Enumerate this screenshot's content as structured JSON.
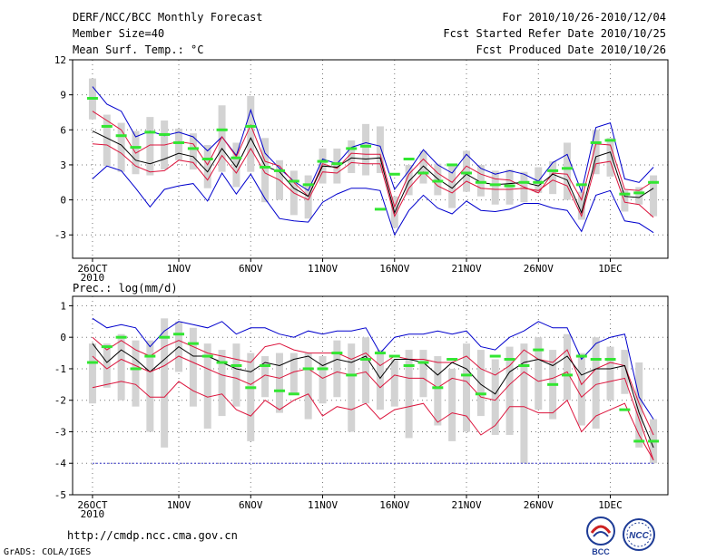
{
  "header": {
    "left_line1": "DERF/NCC/BCC Monthly Forecast",
    "left_line2": "Member Size=40",
    "left_line3": "Mean Surf. Temp.: °C",
    "right_line1": "For 2010/10/26-2010/12/04",
    "right_line2": "Fcst Started Refer Date 2010/10/25",
    "right_line3": "Fcst Produced Date 2010/10/26"
  },
  "footer": {
    "url": "http://cmdp.ncc.cma.gov.cn",
    "grads": "GrADS: COLA/IGES",
    "logo_bcc": "BCC",
    "logo_ncc": "NCC"
  },
  "colors": {
    "mean": "#000000",
    "spread": "#dc143c",
    "range": "#0000cd",
    "obs": "#32e632",
    "box": "#d3d3d3",
    "grid": "#777777",
    "floor": "#3a3acc"
  },
  "chart_data": [
    {
      "type": "line",
      "title": "Mean Surf. Temp.: °C",
      "ylim": [
        -5,
        12
      ],
      "yticks": [
        -3,
        0,
        3,
        6,
        9,
        12
      ],
      "xlim": [
        0,
        40
      ],
      "xticks": [
        {
          "x": 1,
          "label": "26OCT",
          "sub": "2010"
        },
        {
          "x": 7,
          "label": "1NOV"
        },
        {
          "x": 12,
          "label": "6NOV"
        },
        {
          "x": 17,
          "label": "11NOV"
        },
        {
          "x": 22,
          "label": "16NOV"
        },
        {
          "x": 27,
          "label": "21NOV"
        },
        {
          "x": 32,
          "label": "26NOV"
        },
        {
          "x": 37,
          "label": "1DEC"
        }
      ],
      "x": [
        1,
        2,
        3,
        4,
        5,
        6,
        7,
        8,
        9,
        10,
        11,
        12,
        13,
        14,
        15,
        16,
        17,
        18,
        19,
        20,
        21,
        22,
        23,
        24,
        25,
        26,
        27,
        28,
        29,
        30,
        31,
        32,
        33,
        34,
        35,
        36,
        37,
        38,
        39,
        40
      ],
      "series": [
        {
          "name": "max",
          "values": [
            9.7,
            8.2,
            7.6,
            5.4,
            5.9,
            5.5,
            5.8,
            5.4,
            4.2,
            5.4,
            3.8,
            7.7,
            4.0,
            2.7,
            1.6,
            0.8,
            3.5,
            3.1,
            4.5,
            4.9,
            4.6,
            0.9,
            2.5,
            4.3,
            3.0,
            2.3,
            3.9,
            2.7,
            2.2,
            2.5,
            2.2,
            1.6,
            3.2,
            3.9,
            0.7,
            6.2,
            6.6,
            1.8,
            1.5,
            2.8
          ]
        },
        {
          "name": "upper",
          "values": [
            7.6,
            6.8,
            6.0,
            4.0,
            4.7,
            4.7,
            5.0,
            4.8,
            3.0,
            5.4,
            3.7,
            6.4,
            3.3,
            2.9,
            1.5,
            0.3,
            3.1,
            2.7,
            4.0,
            3.9,
            3.9,
            -0.6,
            2.2,
            3.5,
            2.3,
            1.5,
            2.9,
            2.2,
            1.8,
            1.7,
            1.1,
            0.6,
            2.3,
            2.2,
            0.0,
            4.8,
            4.7,
            0.9,
            0.8,
            1.6
          ]
        },
        {
          "name": "mean",
          "values": [
            5.9,
            5.3,
            4.7,
            3.4,
            3.1,
            3.5,
            4.0,
            3.7,
            2.4,
            4.4,
            2.8,
            5.3,
            2.9,
            2.4,
            1.0,
            0.3,
            2.9,
            2.8,
            3.6,
            3.5,
            3.6,
            -1.1,
            1.6,
            2.9,
            1.8,
            1.0,
            2.2,
            1.5,
            1.3,
            1.4,
            1.5,
            1.2,
            2.2,
            1.7,
            -1.1,
            3.7,
            4.1,
            0.3,
            0.2,
            1.0
          ]
        },
        {
          "name": "lower",
          "values": [
            4.8,
            4.7,
            4.0,
            2.9,
            2.4,
            2.5,
            3.4,
            3.2,
            1.7,
            3.8,
            2.3,
            4.4,
            2.3,
            1.7,
            0.6,
            0.0,
            2.4,
            2.3,
            3.2,
            3.1,
            3.1,
            -1.4,
            1.0,
            2.4,
            1.2,
            0.6,
            1.6,
            1.0,
            0.9,
            0.9,
            1.0,
            0.8,
            1.7,
            1.2,
            -1.4,
            3.1,
            3.3,
            -0.2,
            -0.4,
            -1.5
          ]
        },
        {
          "name": "min",
          "values": [
            1.8,
            2.9,
            2.5,
            1.0,
            -0.6,
            0.9,
            1.2,
            1.4,
            -0.1,
            2.3,
            0.5,
            2.2,
            0.1,
            -1.6,
            -1.8,
            -1.9,
            -0.2,
            0.5,
            1.0,
            1.0,
            0.8,
            -3.0,
            -0.9,
            0.4,
            -0.7,
            -1.2,
            -0.1,
            -0.9,
            -1.0,
            -0.8,
            -0.3,
            -0.3,
            -0.7,
            -0.9,
            -2.7,
            0.4,
            0.8,
            -1.8,
            -2.0,
            -2.8
          ]
        },
        {
          "name": "obs",
          "values": [
            8.7,
            6.3,
            5.5,
            4.5,
            5.8,
            5.6,
            4.9,
            4.4,
            3.5,
            6.0,
            3.6,
            6.3,
            2.8,
            2.5,
            1.6,
            1.3,
            3.3,
            3.1,
            4.4,
            4.6,
            -0.8,
            2.2,
            3.5,
            2.3,
            1.6,
            3.0,
            2.3,
            1.5,
            1.3,
            1.2,
            1.5,
            1.5,
            2.5,
            2.7,
            1.3,
            4.9,
            5.1,
            0.5,
            0.6,
            1.5
          ]
        }
      ],
      "boxes": {
        "top": [
          10.4,
          7.3,
          6.6,
          5.9,
          7.1,
          6.8,
          6.1,
          5.7,
          4.7,
          8.1,
          4.9,
          8.9,
          5.3,
          3.4,
          2.5,
          2.1,
          4.4,
          4.4,
          5.1,
          6.5,
          6.3,
          0.3,
          3.0,
          4.2,
          3.1,
          2.9,
          4.2,
          3.0,
          2.5,
          2.6,
          2.4,
          2.8,
          3.3,
          4.9,
          0.7,
          6.0,
          5.3,
          0.8,
          1.1,
          2.1
        ],
        "bottom": [
          6.9,
          2.9,
          2.4,
          2.2,
          2.1,
          2.6,
          3.4,
          2.6,
          1.0,
          2.4,
          1.1,
          2.4,
          -0.2,
          0.0,
          -1.3,
          -1.6,
          1.4,
          1.4,
          2.3,
          2.1,
          2.3,
          -2.4,
          0.4,
          1.4,
          0.4,
          -0.7,
          0.7,
          0.3,
          -0.4,
          -0.4,
          -0.2,
          0.6,
          0.5,
          0.0,
          -1.7,
          2.2,
          2.0,
          -1.0,
          -0.4,
          -1.4
        ]
      }
    },
    {
      "type": "line",
      "title": "Prec.: log(mm/d)",
      "ylim": [
        -5,
        1.3
      ],
      "yticks": [
        -5,
        -4,
        -3,
        -2,
        -1,
        0,
        1
      ],
      "xlim": [
        0,
        40
      ],
      "xticks": [
        {
          "x": 1,
          "label": "26OCT",
          "sub": "2010"
        },
        {
          "x": 7,
          "label": "1NOV"
        },
        {
          "x": 12,
          "label": "6NOV"
        },
        {
          "x": 17,
          "label": "11NOV"
        },
        {
          "x": 22,
          "label": "16NOV"
        },
        {
          "x": 27,
          "label": "21NOV"
        },
        {
          "x": 32,
          "label": "26NOV"
        },
        {
          "x": 37,
          "label": "1DEC"
        }
      ],
      "x": [
        1,
        2,
        3,
        4,
        5,
        6,
        7,
        8,
        9,
        10,
        11,
        12,
        13,
        14,
        15,
        16,
        17,
        18,
        19,
        20,
        21,
        22,
        23,
        24,
        25,
        26,
        27,
        28,
        29,
        30,
        31,
        32,
        33,
        34,
        35,
        36,
        37,
        38,
        39,
        40
      ],
      "series": [
        {
          "name": "max",
          "values": [
            0.6,
            0.3,
            0.4,
            0.3,
            -0.3,
            0.2,
            0.5,
            0.4,
            0.3,
            0.5,
            0.1,
            0.3,
            0.3,
            0.1,
            0.0,
            0.2,
            0.1,
            0.2,
            0.2,
            0.3,
            -0.5,
            0.0,
            0.1,
            0.1,
            0.2,
            0.1,
            0.2,
            -0.3,
            -0.4,
            0.0,
            0.2,
            0.5,
            0.3,
            0.3,
            -0.7,
            -0.2,
            0.0,
            0.1,
            -1.9,
            -2.6
          ]
        },
        {
          "name": "upper",
          "values": [
            0.0,
            -0.4,
            -0.1,
            -0.4,
            -0.6,
            -0.3,
            -0.1,
            -0.3,
            -0.5,
            -0.6,
            -0.7,
            -0.8,
            -0.3,
            -0.2,
            -0.4,
            -0.5,
            -0.5,
            -0.5,
            -0.7,
            -0.5,
            -0.9,
            -0.6,
            -0.7,
            -0.7,
            -0.8,
            -0.8,
            -0.6,
            -1.0,
            -1.2,
            -0.9,
            -0.4,
            -0.7,
            -0.8,
            -0.4,
            -1.5,
            -1.0,
            -0.8,
            -0.9,
            -2.1,
            -3.1
          ]
        },
        {
          "name": "mean",
          "values": [
            -0.2,
            -0.8,
            -0.4,
            -0.7,
            -1.1,
            -0.7,
            -0.3,
            -0.6,
            -0.6,
            -0.8,
            -1.0,
            -1.1,
            -0.8,
            -0.9,
            -0.7,
            -0.6,
            -0.9,
            -0.7,
            -0.8,
            -0.6,
            -1.3,
            -0.7,
            -0.7,
            -0.8,
            -1.2,
            -0.8,
            -1.0,
            -1.5,
            -1.8,
            -1.1,
            -0.8,
            -0.7,
            -0.9,
            -0.6,
            -1.2,
            -1.0,
            -1.0,
            -0.9,
            -2.4,
            -3.5
          ]
        },
        {
          "name": "lower",
          "values": [
            -0.6,
            -1.0,
            -0.7,
            -0.9,
            -1.1,
            -0.9,
            -0.6,
            -0.8,
            -1.0,
            -1.2,
            -1.3,
            -1.5,
            -1.2,
            -1.3,
            -1.1,
            -1.0,
            -1.3,
            -1.1,
            -1.2,
            -1.1,
            -1.6,
            -1.2,
            -1.3,
            -1.3,
            -1.6,
            -1.3,
            -1.4,
            -1.9,
            -2.0,
            -1.5,
            -1.1,
            -1.4,
            -1.3,
            -1.1,
            -1.9,
            -1.5,
            -1.4,
            -1.3,
            -2.6,
            -3.9
          ]
        },
        {
          "name": "low2",
          "values": [
            -1.6,
            -1.5,
            -1.4,
            -1.5,
            -1.9,
            -1.9,
            -1.4,
            -1.7,
            -1.9,
            -1.8,
            -2.3,
            -2.5,
            -2.0,
            -2.3,
            -2.0,
            -1.8,
            -2.5,
            -2.2,
            -2.3,
            -2.1,
            -2.6,
            -2.3,
            -2.2,
            -2.1,
            -2.7,
            -2.4,
            -2.5,
            -3.1,
            -2.8,
            -2.2,
            -2.2,
            -2.4,
            -2.4,
            -2.0,
            -3.0,
            -2.5,
            -2.3,
            -2.1,
            -3.1,
            -3.9
          ]
        },
        {
          "name": "floor",
          "values": [
            -4,
            -4,
            -4,
            -4,
            -4,
            -4,
            -4,
            -4,
            -4,
            -4,
            -4,
            -4,
            -4,
            -4,
            -4,
            -4,
            -4,
            -4,
            -4,
            -4,
            -4,
            -4,
            -4,
            -4,
            -4,
            -4,
            -4,
            -4,
            -4,
            -4,
            -4,
            -4,
            -4,
            -4,
            -4,
            -4,
            -4,
            -4,
            -4,
            -4
          ]
        },
        {
          "name": "obs",
          "values": [
            -0.8,
            -0.3,
            0.0,
            -1.0,
            -0.6,
            0.0,
            0.1,
            -0.2,
            -0.6,
            -0.8,
            -0.9,
            -1.6,
            -0.9,
            -1.7,
            -1.8,
            -1.0,
            -1.0,
            -0.5,
            -1.2,
            -0.7,
            -0.5,
            -0.6,
            -0.9,
            -0.8,
            -1.6,
            -0.7,
            -1.2,
            -1.8,
            -0.6,
            -0.7,
            -0.9,
            -0.4,
            -1.5,
            -1.2,
            -0.6,
            -0.7,
            -0.7,
            -2.3,
            -3.3,
            -3.3
          ]
        }
      ],
      "boxes": {
        "top": [
          -0.2,
          -0.2,
          0.1,
          -0.1,
          -0.1,
          0.6,
          0.5,
          0.3,
          -0.2,
          -0.4,
          -0.2,
          -0.5,
          -0.6,
          -0.5,
          -0.5,
          -0.5,
          -0.6,
          -0.1,
          -0.2,
          0.0,
          -0.4,
          -0.7,
          -0.4,
          -0.4,
          -0.6,
          -1.0,
          -0.2,
          -0.4,
          -0.7,
          -0.3,
          -0.2,
          0.0,
          -0.4,
          0.1,
          -0.5,
          0.0,
          -0.3,
          -0.4,
          -0.8,
          -2.6
        ],
        "bottom": [
          -2.1,
          -1.6,
          -2.0,
          -2.2,
          -3.0,
          -3.5,
          -1.1,
          -2.2,
          -2.9,
          -2.5,
          -2.2,
          -3.3,
          -1.9,
          -2.4,
          -1.8,
          -2.6,
          -2.1,
          -1.9,
          -3.0,
          -2.1,
          -2.3,
          -2.2,
          -3.2,
          -1.9,
          -2.8,
          -3.3,
          -3.0,
          -2.5,
          -3.1,
          -3.1,
          -4.0,
          -2.3,
          -2.6,
          -2.0,
          -2.8,
          -2.9,
          -2.0,
          -1.8,
          -3.5,
          -4.0
        ]
      }
    }
  ]
}
